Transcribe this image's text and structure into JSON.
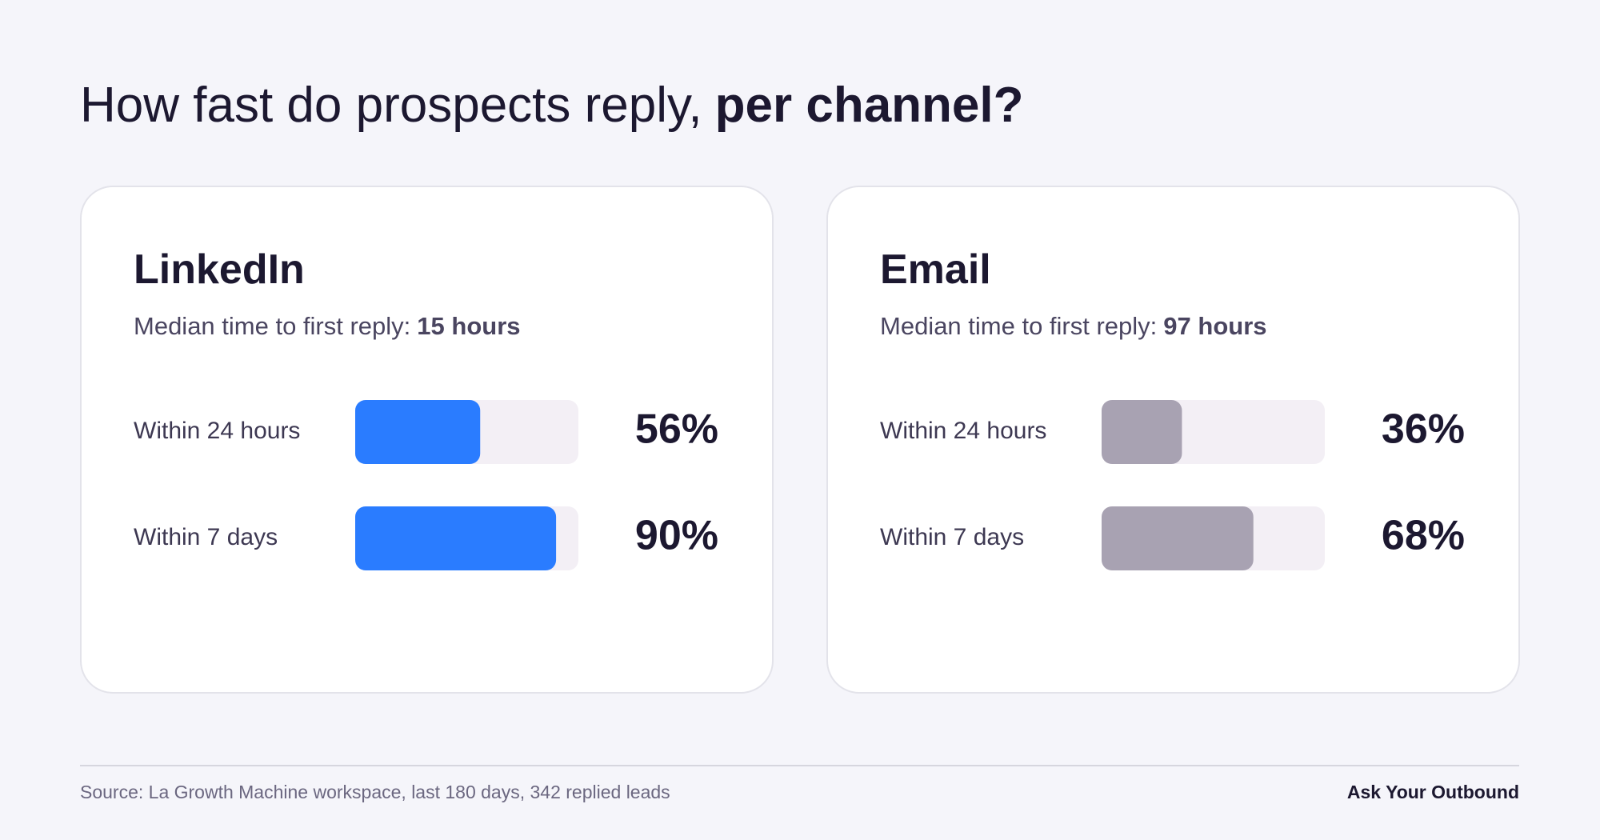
{
  "title": {
    "text": "How fast do prospects reply,",
    "emphasis": "per channel?"
  },
  "footer": {
    "source": "Source: La Growth Machine workspace, last 180 days, 342 replied leads",
    "brand": "Ask Your Outbound"
  },
  "chart_data": [
    {
      "type": "bar",
      "orientation": "horizontal",
      "title": "LinkedIn",
      "subtitle": "Median time to first reply:",
      "subtitle_value": "15 hours",
      "categories": [
        "Within 24 hours",
        "Within 7 days"
      ],
      "values": [
        56,
        90
      ],
      "value_labels": [
        "56%",
        "90%"
      ],
      "color": "#2a7cff",
      "xlim": [
        0,
        100
      ]
    },
    {
      "type": "bar",
      "orientation": "horizontal",
      "title": "Email",
      "subtitle": "Median time to first reply:",
      "subtitle_value": "97 hours",
      "categories": [
        "Within 24 hours",
        "Within 7 days"
      ],
      "values": [
        36,
        68
      ],
      "value_labels": [
        "36%",
        "68%"
      ],
      "color": "#a8a2b2",
      "xlim": [
        0,
        100
      ]
    }
  ]
}
